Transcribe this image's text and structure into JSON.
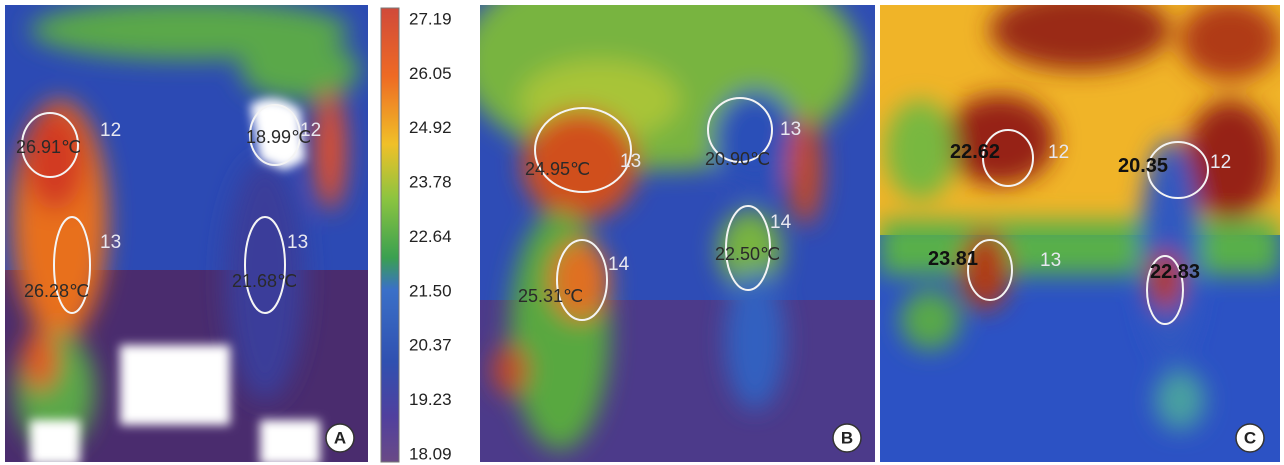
{
  "panels": [
    {
      "label": "A",
      "annotations": [
        {
          "value": "26.91℃",
          "region": "12"
        },
        {
          "value": "18.99℃",
          "region": "12"
        },
        {
          "value": "26.28℃",
          "region": "13"
        },
        {
          "value": "21.68℃",
          "region": "13"
        }
      ]
    },
    {
      "label": "B",
      "annotations": [
        {
          "value": "24.95℃",
          "region": "13"
        },
        {
          "value": "20.90℃",
          "region": "13"
        },
        {
          "value": "25.31℃",
          "region": "14"
        },
        {
          "value": "22.50℃",
          "region": "14"
        }
      ]
    },
    {
      "label": "C",
      "annotations": [
        {
          "value": "22.62",
          "region": "12"
        },
        {
          "value": "20.35",
          "region": "12"
        },
        {
          "value": "23.81",
          "region": "13"
        },
        {
          "value": "22.83"
        }
      ]
    }
  ],
  "colorbar": {
    "ticks": [
      "27.19",
      "26.05",
      "24.92",
      "23.78",
      "22.64",
      "21.50",
      "20.37",
      "19.23",
      "18.09"
    ]
  }
}
